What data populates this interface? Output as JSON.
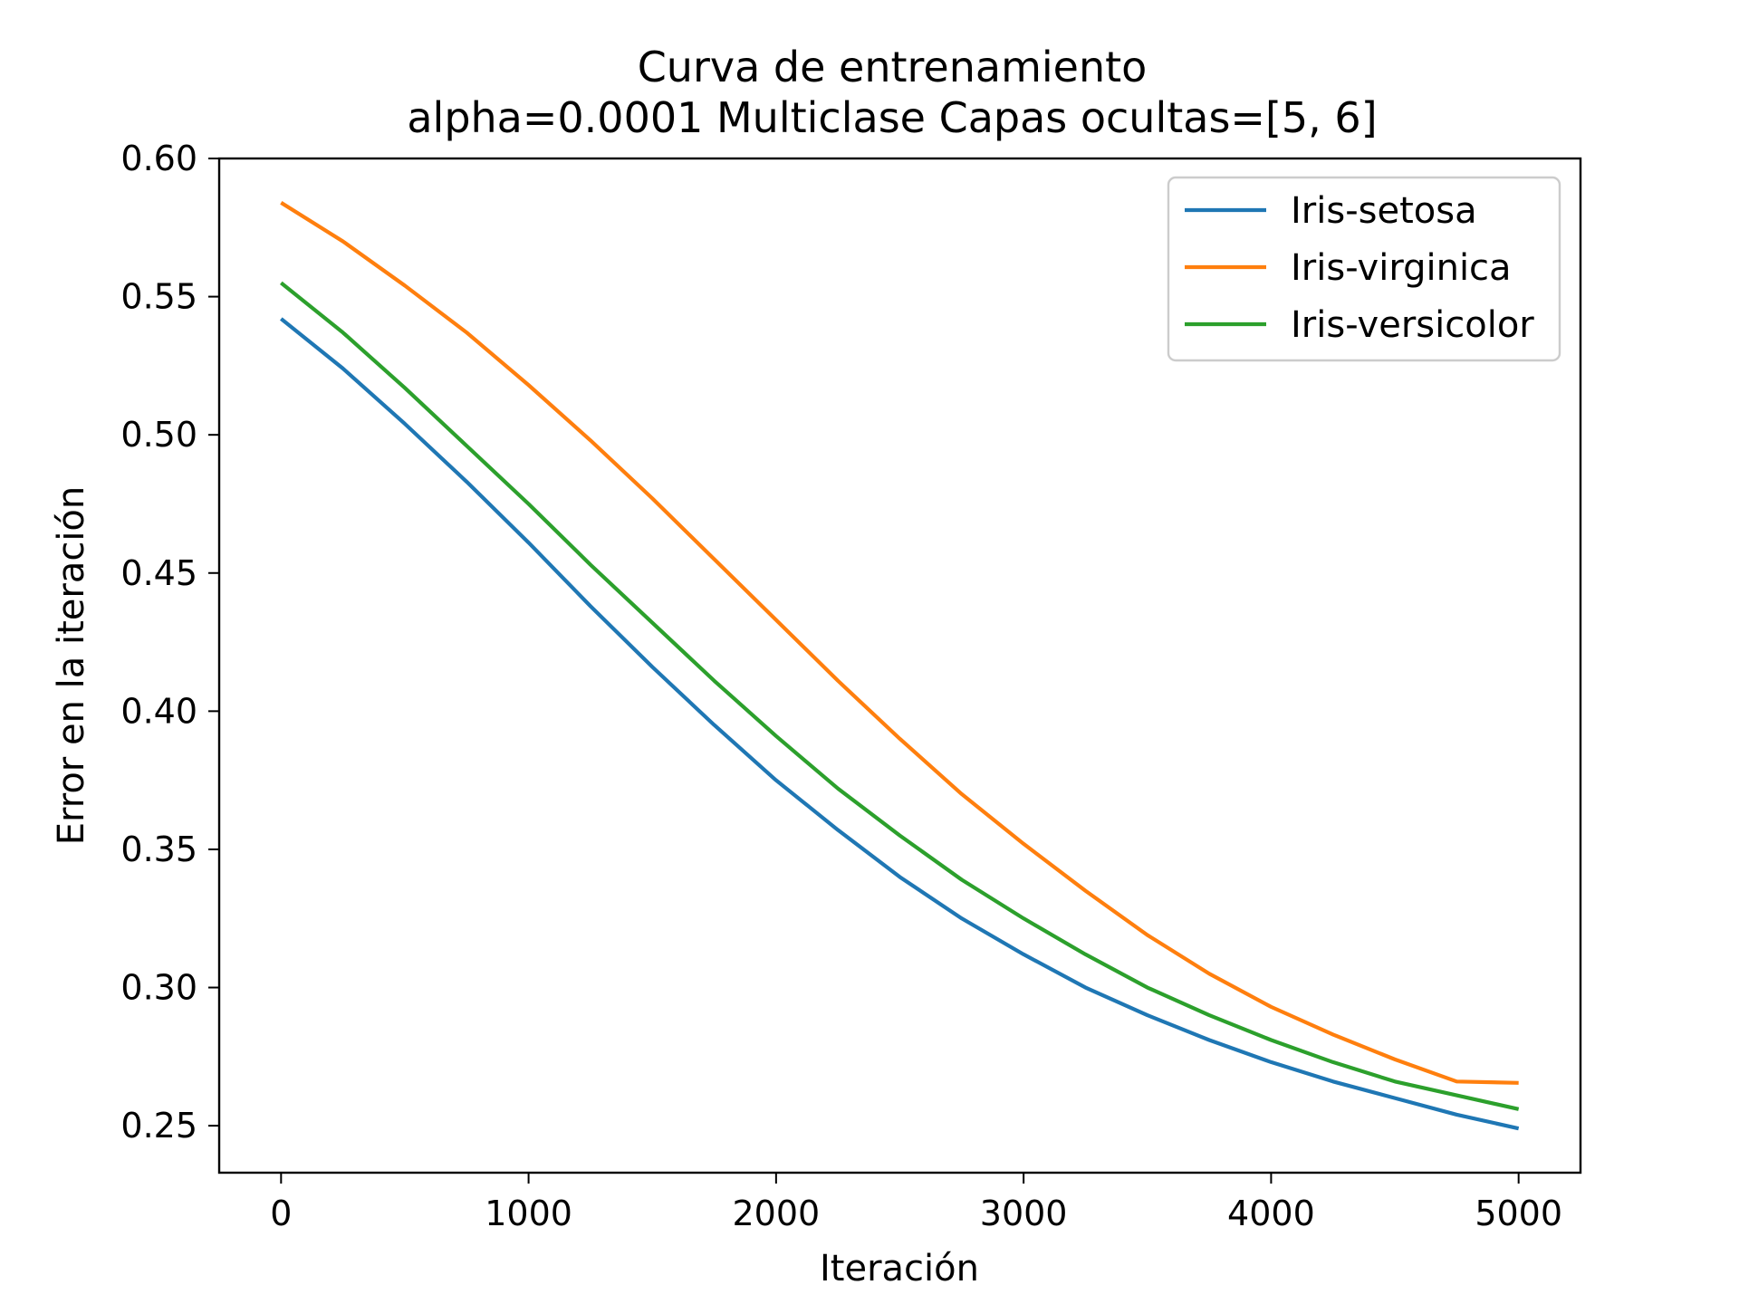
{
  "chart_data": {
    "type": "line",
    "title": "Curva de entrenamiento",
    "subtitle": "alpha=0.0001 Multiclase Capas ocultas=[5, 6]",
    "xlabel": "Iteración",
    "ylabel": "Error en la iteración",
    "xlim": [
      -250,
      5250
    ],
    "ylim": [
      0.233,
      0.6
    ],
    "xticks": [
      0,
      1000,
      2000,
      3000,
      4000,
      5000
    ],
    "xtick_labels": [
      "0",
      "1000",
      "2000",
      "3000",
      "4000",
      "5000"
    ],
    "yticks": [
      0.25,
      0.3,
      0.35,
      0.4,
      0.45,
      0.5,
      0.55,
      0.6
    ],
    "ytick_labels": [
      "0.25",
      "0.30",
      "0.35",
      "0.40",
      "0.45",
      "0.50",
      "0.55",
      "0.60"
    ],
    "grid": false,
    "legend_position": "top-right",
    "x": [
      0,
      250,
      500,
      750,
      1000,
      1250,
      1500,
      1750,
      2000,
      2250,
      2500,
      2750,
      3000,
      3250,
      3500,
      3750,
      4000,
      4250,
      4500,
      4750,
      5000
    ],
    "series": [
      {
        "name": "Iris-setosa",
        "color": "#1f77b4",
        "values": [
          0.542,
          0.524,
          0.504,
          0.483,
          0.461,
          0.438,
          0.416,
          0.395,
          0.375,
          0.357,
          0.34,
          0.325,
          0.312,
          0.3,
          0.29,
          0.281,
          0.273,
          0.266,
          0.26,
          0.254,
          0.249
        ]
      },
      {
        "name": "Iris-virginica",
        "color": "#ff7f0e",
        "values": [
          0.584,
          0.57,
          0.554,
          0.537,
          0.518,
          0.498,
          0.477,
          0.455,
          0.433,
          0.411,
          0.39,
          0.37,
          0.352,
          0.335,
          0.319,
          0.305,
          0.293,
          0.283,
          0.274,
          0.266,
          0.2655
        ]
      },
      {
        "name": "Iris-versicolor",
        "color": "#2ca02c",
        "values": [
          0.555,
          0.537,
          0.517,
          0.496,
          0.475,
          0.453,
          0.432,
          0.411,
          0.391,
          0.372,
          0.355,
          0.339,
          0.325,
          0.312,
          0.3,
          0.29,
          0.281,
          0.273,
          0.266,
          0.261,
          0.256
        ]
      }
    ]
  }
}
